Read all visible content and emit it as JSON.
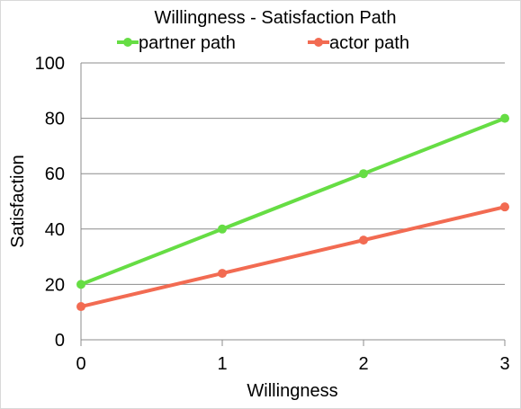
{
  "chart_data": {
    "type": "line",
    "title": "Willingness - Satisfaction Path",
    "xlabel": "Willingness",
    "ylabel": "Satisfaction",
    "x": [
      0,
      1,
      2,
      3
    ],
    "xlim": [
      0,
      3
    ],
    "ylim": [
      0,
      100
    ],
    "xticks": [
      0,
      1,
      2,
      3
    ],
    "yticks": [
      0,
      20,
      40,
      60,
      80,
      100
    ],
    "grid": "horizontal",
    "legend_position": "top",
    "series": [
      {
        "name": "partner path",
        "color": "#66dd44",
        "values": [
          20,
          40,
          60,
          80
        ]
      },
      {
        "name": "actor path",
        "color": "#f26b52",
        "values": [
          12,
          24,
          36,
          48
        ]
      }
    ]
  }
}
